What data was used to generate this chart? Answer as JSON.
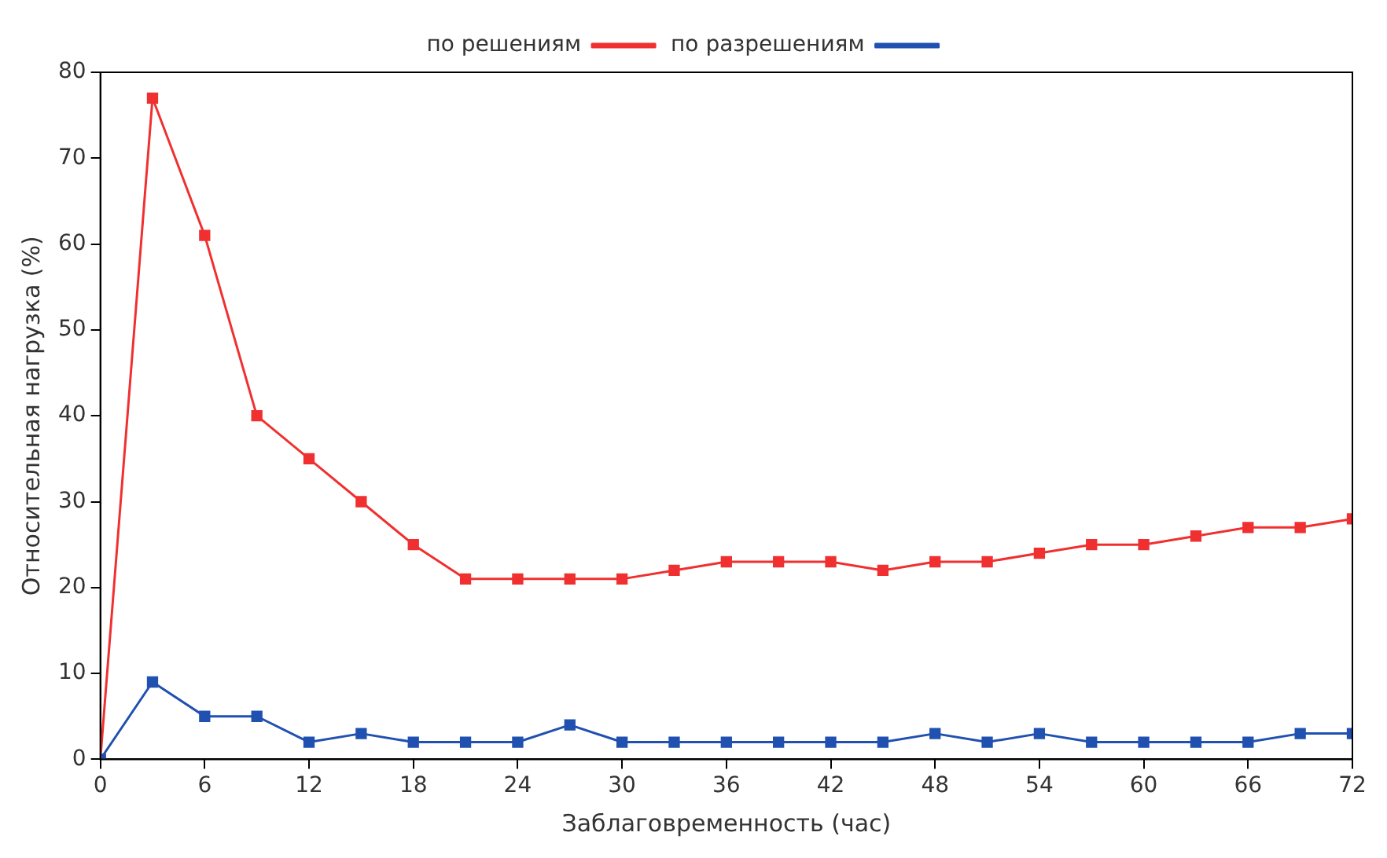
{
  "chart_data": {
    "type": "line",
    "xlabel": "Заблаговременность (час)",
    "ylabel": "Относительная нагрузка (%)",
    "x": [
      0,
      3,
      6,
      9,
      12,
      15,
      18,
      21,
      24,
      27,
      30,
      33,
      36,
      39,
      42,
      45,
      48,
      51,
      54,
      57,
      60,
      63,
      66,
      69,
      72
    ],
    "series": [
      {
        "name": "по разрешениям",
        "color": "#2050b0",
        "values": [
          0,
          9,
          5,
          5,
          2,
          3,
          2,
          2,
          2,
          4,
          2,
          2,
          2,
          2,
          2,
          2,
          3,
          2,
          3,
          2,
          2,
          2,
          2,
          3,
          3
        ]
      },
      {
        "name": "по решениям",
        "color": "#f03030",
        "values": [
          0,
          77,
          61,
          40,
          35,
          30,
          25,
          21,
          21,
          21,
          21,
          22,
          23,
          23,
          23,
          22,
          23,
          23,
          24,
          25,
          25,
          26,
          27,
          27,
          28
        ]
      }
    ],
    "xlim": [
      0,
      72
    ],
    "xticks": [
      0,
      6,
      12,
      18,
      24,
      30,
      36,
      42,
      48,
      54,
      60,
      66,
      72
    ],
    "ylim": [
      0,
      80
    ],
    "yticks": [
      0,
      10,
      20,
      30,
      40,
      50,
      60,
      70,
      80
    ],
    "grid": false,
    "legend": "top",
    "marker": "square",
    "line_style": "solid"
  }
}
